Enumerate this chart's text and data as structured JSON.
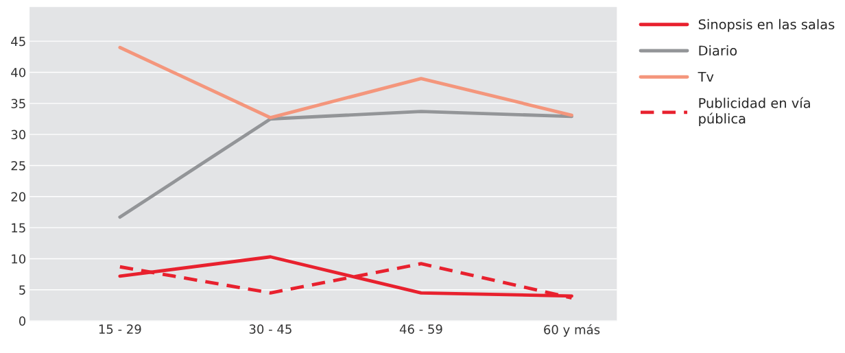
{
  "chart_data": {
    "type": "line",
    "categories": [
      "15 - 29",
      "30 - 45",
      "46 - 59",
      "60 y más"
    ],
    "series": [
      {
        "name": "Sinopsis en las salas",
        "color": "#e8212e",
        "line_style": "solid",
        "values": [
          7.2,
          10.3,
          4.5,
          4.0
        ]
      },
      {
        "name": "Diario",
        "color": "#939598",
        "line_style": "solid",
        "values": [
          16.7,
          32.5,
          33.7,
          32.9
        ]
      },
      {
        "name": "Tv",
        "color": "#f4967c",
        "line_style": "solid",
        "values": [
          44.0,
          32.7,
          39.0,
          33.1
        ]
      },
      {
        "name": "Publicidad en vía\npública",
        "color": "#e8212e",
        "line_style": "dashed",
        "values": [
          8.7,
          4.5,
          9.2,
          3.7
        ]
      }
    ],
    "ylim": [
      0,
      50.5
    ],
    "yticks": [
      0,
      5,
      10,
      15,
      20,
      25,
      30,
      35,
      40,
      45
    ],
    "grid": "y",
    "legend": "top right",
    "marker": "none"
  }
}
